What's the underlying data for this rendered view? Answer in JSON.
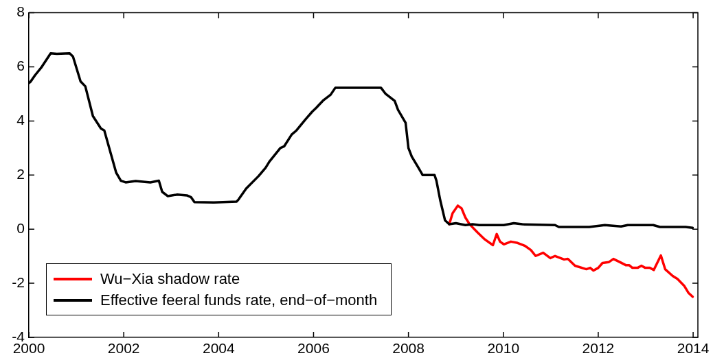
{
  "chart_data": {
    "type": "line",
    "xlim": [
      2000,
      2014.1
    ],
    "xticks": [
      2000,
      2002,
      2004,
      2006,
      2008,
      2010,
      2012,
      2014
    ],
    "ylim": [
      -4,
      8
    ],
    "yticks": [
      -4,
      -2,
      0,
      2,
      4,
      6,
      8
    ],
    "grid": false,
    "legend": "bottom left",
    "marker": "none",
    "line_style": "solid",
    "series": [
      {
        "name": "Wu−Xia shadow rate",
        "color": "#ff0000",
        "x": [
          2008.86,
          2008.93,
          2009.04,
          2009.12,
          2009.2,
          2009.29,
          2009.46,
          2009.61,
          2009.78,
          2009.86,
          2009.93,
          2010.01,
          2010.16,
          2010.3,
          2010.45,
          2010.58,
          2010.68,
          2010.84,
          2010.99,
          2011.09,
          2011.28,
          2011.36,
          2011.51,
          2011.75,
          2011.83,
          2011.9,
          2012.0,
          2012.09,
          2012.22,
          2012.32,
          2012.46,
          2012.58,
          2012.65,
          2012.72,
          2012.83,
          2012.91,
          2012.99,
          2013.09,
          2013.17,
          2013.32,
          2013.41,
          2013.57,
          2013.67,
          2013.81,
          2013.9,
          2013.99
        ],
        "values": [
          0.18,
          0.59,
          0.87,
          0.77,
          0.43,
          0.18,
          -0.13,
          -0.38,
          -0.59,
          -0.18,
          -0.46,
          -0.56,
          -0.46,
          -0.51,
          -0.61,
          -0.77,
          -0.99,
          -0.87,
          -1.07,
          -0.99,
          -1.12,
          -1.1,
          -1.35,
          -1.48,
          -1.43,
          -1.53,
          -1.43,
          -1.25,
          -1.22,
          -1.1,
          -1.22,
          -1.33,
          -1.33,
          -1.43,
          -1.43,
          -1.35,
          -1.43,
          -1.43,
          -1.51,
          -0.97,
          -1.48,
          -1.73,
          -1.84,
          -2.09,
          -2.35,
          -2.5
        ]
      },
      {
        "name": "Effective feeral funds rate, end−of−month",
        "color": "#000000",
        "x": [
          2000.0,
          2000.04,
          2000.13,
          2000.26,
          2000.46,
          2000.59,
          2000.86,
          2000.93,
          2001.09,
          2001.19,
          2001.35,
          2001.52,
          2001.59,
          2001.84,
          2001.94,
          2002.04,
          2002.25,
          2002.56,
          2002.74,
          2002.81,
          2002.93,
          2003.13,
          2003.33,
          2003.42,
          2003.49,
          2003.9,
          2004.38,
          2004.42,
          2004.58,
          2004.84,
          2004.99,
          2005.07,
          2005.3,
          2005.38,
          2005.54,
          2005.64,
          2005.83,
          2005.97,
          2006.06,
          2006.21,
          2006.36,
          2006.46,
          2006.86,
          2007.42,
          2007.52,
          2007.71,
          2007.78,
          2007.94,
          2008.0,
          2008.07,
          2008.2,
          2008.3,
          2008.55,
          2008.59,
          2008.67,
          2008.77,
          2008.86,
          2009.0,
          2009.2,
          2009.35,
          2009.49,
          2010.01,
          2010.22,
          2010.4,
          2011.09,
          2011.17,
          2011.81,
          2012.14,
          2012.48,
          2012.62,
          2013.16,
          2013.3,
          2013.84,
          2013.99
        ],
        "values": [
          5.4,
          5.46,
          5.69,
          5.97,
          6.5,
          6.48,
          6.5,
          6.38,
          5.46,
          5.28,
          4.18,
          3.72,
          3.65,
          2.09,
          1.79,
          1.73,
          1.78,
          1.73,
          1.79,
          1.38,
          1.22,
          1.28,
          1.25,
          1.18,
          1.0,
          0.99,
          1.02,
          1.1,
          1.5,
          1.96,
          2.27,
          2.5,
          3.0,
          3.06,
          3.5,
          3.65,
          4.06,
          4.34,
          4.49,
          4.77,
          4.97,
          5.23,
          5.23,
          5.23,
          5.0,
          4.74,
          4.41,
          3.93,
          3.0,
          2.68,
          2.3,
          2.0,
          2.0,
          1.79,
          1.07,
          0.33,
          0.18,
          0.22,
          0.15,
          0.18,
          0.15,
          0.15,
          0.22,
          0.18,
          0.15,
          0.08,
          0.08,
          0.15,
          0.1,
          0.15,
          0.15,
          0.08,
          0.08,
          0.05
        ]
      }
    ]
  }
}
